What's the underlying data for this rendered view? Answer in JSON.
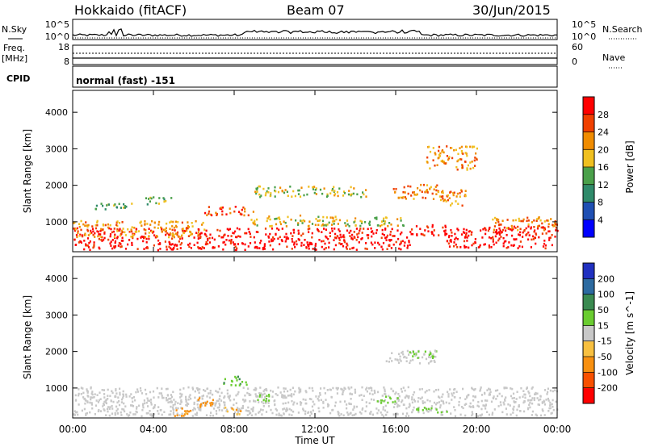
{
  "header": {
    "station": "Hokkaido (fitACF)",
    "beam": "Beam 07",
    "date": "30/Jun/2015"
  },
  "panels": {
    "nsky_label": "N.Sky",
    "nsearch_label": "N.Search",
    "nsky_ticks": [
      "10^5",
      "10^0"
    ],
    "nsearch_ticks": [
      "10^5",
      "10^0"
    ],
    "freq_label_1": "Freq.",
    "freq_label_2": "[MHz]",
    "freq_ticks": [
      "18",
      "8"
    ],
    "nave_label": "Nave",
    "nave_ticks": [
      "60",
      "0"
    ],
    "cpid_label": "CPID",
    "cpid_text": "normal (fast) -151"
  },
  "chart_data": [
    {
      "type": "heatmap",
      "name": "power",
      "ylabel": "Slant Range [km]",
      "xlabel": "",
      "xlim": [
        "00:00",
        "24:00"
      ],
      "ylim": [
        180,
        4600
      ],
      "yticks": [
        "1000",
        "2000",
        "3000",
        "4000"
      ],
      "colorbar": {
        "label": "Power [dB]",
        "ticks": [
          "4",
          "8",
          "12",
          "16",
          "20",
          "24",
          "28"
        ],
        "colors": [
          "#0000ff",
          "#1f4fb3",
          "#2f8a6a",
          "#4aa04a",
          "#f0c020",
          "#f08c00",
          "#f04000",
          "#ff0000"
        ]
      },
      "regions": [
        {
          "t0": 0.0,
          "t1": 16.7,
          "r0": 250,
          "r1": 850,
          "level": 30
        },
        {
          "t0": 0.0,
          "t1": 6.5,
          "r0": 600,
          "r1": 1050,
          "level": 20
        },
        {
          "t0": 6.5,
          "t1": 9.0,
          "r0": 1200,
          "r1": 1450,
          "level": 24
        },
        {
          "t0": 8.5,
          "t1": 13.0,
          "r0": 900,
          "r1": 1200,
          "level": 18
        },
        {
          "t0": 13.0,
          "t1": 16.5,
          "r0": 900,
          "r1": 1150,
          "level": 16
        },
        {
          "t0": 16.5,
          "t1": 18.5,
          "r0": 650,
          "r1": 950,
          "level": 28
        },
        {
          "t0": 18.5,
          "t1": 24.0,
          "r0": 300,
          "r1": 900,
          "level": 30
        },
        {
          "t0": 20.5,
          "t1": 24.0,
          "r0": 800,
          "r1": 1150,
          "level": 22
        },
        {
          "t0": 15.8,
          "t1": 18.3,
          "r0": 1650,
          "r1": 2050,
          "level": 22
        },
        {
          "t0": 18.0,
          "t1": 19.5,
          "r0": 1450,
          "r1": 1900,
          "level": 20
        },
        {
          "t0": 1.0,
          "t1": 3.0,
          "r0": 1350,
          "r1": 1550,
          "level": 12
        },
        {
          "t0": 3.5,
          "t1": 5.0,
          "r0": 1500,
          "r1": 1700,
          "level": 14
        },
        {
          "t0": 17.5,
          "t1": 20.0,
          "r0": 2450,
          "r1": 3100,
          "level": 20
        },
        {
          "t0": 9.0,
          "t1": 14.5,
          "r0": 1700,
          "r1": 2000,
          "level": 16
        }
      ]
    },
    {
      "type": "heatmap",
      "name": "velocity",
      "ylabel": "Slant Range [km]",
      "xlabel": "Time UT",
      "xlim": [
        "00:00",
        "24:00"
      ],
      "ylim": [
        180,
        4600
      ],
      "xticks": [
        "00:00",
        "04:00",
        "08:00",
        "12:00",
        "16:00",
        "20:00",
        "00:00"
      ],
      "yticks": [
        "1000",
        "2000",
        "3000",
        "4000"
      ],
      "colorbar": {
        "label": "Velocity [m s^-1]",
        "ticks": [
          "200",
          "100",
          "50",
          "15",
          "-15",
          "-50",
          "-100",
          "-200"
        ],
        "colors": [
          "#2030c0",
          "#2c6aa0",
          "#3a8a50",
          "#6acc30",
          "#c8c8c8",
          "#f8c040",
          "#f89010",
          "#f85000",
          "#ff0000"
        ]
      },
      "regions": [
        {
          "t0": 0.0,
          "t1": 24.0,
          "r0": 250,
          "r1": 1050,
          "vel": 0
        },
        {
          "t0": 5.0,
          "t1": 6.0,
          "r0": 250,
          "r1": 500,
          "vel": -60
        },
        {
          "t0": 6.0,
          "t1": 7.2,
          "r0": 500,
          "r1": 750,
          "vel": -80
        },
        {
          "t0": 7.3,
          "t1": 8.6,
          "r0": 1100,
          "r1": 1350,
          "vel": 40
        },
        {
          "t0": 7.5,
          "t1": 8.3,
          "r0": 300,
          "r1": 500,
          "vel": -40
        },
        {
          "t0": 9.0,
          "t1": 10.0,
          "r0": 650,
          "r1": 850,
          "vel": 30
        },
        {
          "t0": 15.5,
          "t1": 18.0,
          "r0": 1700,
          "r1": 2050,
          "vel": 0
        },
        {
          "t0": 16.5,
          "t1": 18.0,
          "r0": 1850,
          "r1": 2100,
          "vel": 25
        },
        {
          "t0": 15.0,
          "t1": 16.2,
          "r0": 600,
          "r1": 800,
          "vel": 30
        },
        {
          "t0": 17.0,
          "t1": 18.5,
          "r0": 350,
          "r1": 500,
          "vel": 30
        }
      ]
    }
  ]
}
